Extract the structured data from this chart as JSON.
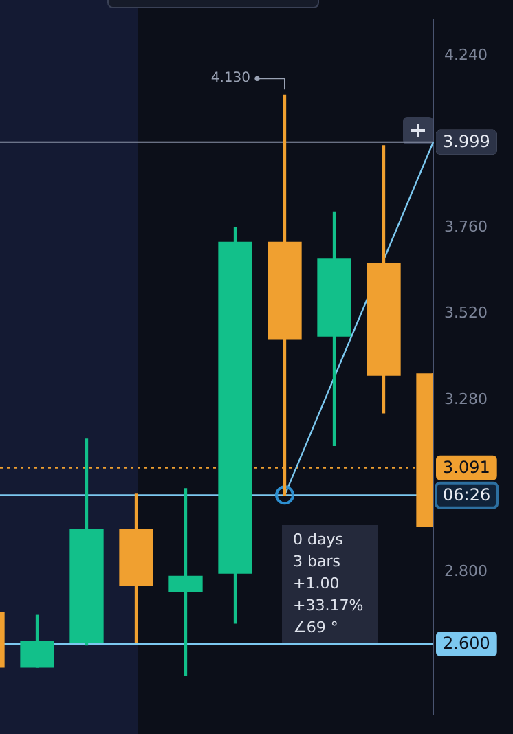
{
  "chart_data": {
    "type": "candlestick",
    "categories": [
      null,
      null,
      null,
      null,
      null,
      null,
      null,
      null,
      null,
      null
    ],
    "ohlc": [
      [
        2.687,
        2.687,
        2.535,
        2.535
      ],
      [
        2.535,
        2.68,
        2.535,
        2.607
      ],
      [
        2.604,
        3.171,
        2.597,
        2.92
      ],
      [
        2.92,
        3.018,
        2.604,
        2.764
      ],
      [
        2.746,
        3.033,
        2.513,
        2.789
      ],
      [
        2.797,
        3.76,
        2.658,
        3.72
      ],
      [
        3.72,
        4.13,
        3.015,
        3.451
      ],
      [
        3.458,
        3.804,
        3.153,
        3.673
      ],
      [
        3.662,
        3.989,
        3.244,
        3.349
      ],
      [
        3.353,
        3.353,
        2.927,
        2.927
      ]
    ],
    "colors": [
      "#f0a030",
      "#12c08a",
      "#12c08a",
      "#f0a030",
      "#12c08a",
      "#12c08a",
      "#f0a030",
      "#12c08a",
      "#f0a030",
      "#f0a030"
    ],
    "series": [
      {
        "type": "line",
        "color": "#7cc8f0",
        "values": [
          null,
          null,
          null,
          null,
          null,
          null,
          3.015,
          null,
          null,
          3.999
        ]
      }
    ],
    "ylim": [
      2.405,
      4.339
    ],
    "yticks": [
      {
        "value": 4.24,
        "label": "4.240"
      },
      {
        "value": 3.76,
        "label": "3.760"
      },
      {
        "value": 3.52,
        "label": "3.520"
      },
      {
        "value": 3.28,
        "label": "3.280"
      },
      {
        "value": 2.8,
        "label": "2.800"
      }
    ],
    "ref_lines": [
      {
        "axis": "y",
        "value": 3.999,
        "label": "3.999",
        "color": "#8a93a8"
      },
      {
        "axis": "y",
        "value": 3.091,
        "label": "3.091",
        "color": "#f0a030",
        "line_style": "dotted"
      },
      {
        "axis": "y",
        "value": 3.015,
        "label": null,
        "color": "#7cc8f0"
      },
      {
        "axis": "y",
        "value": 2.6,
        "label": "2.600",
        "color": "#7cc8f0"
      }
    ],
    "annotations": [
      "0 days",
      "3 bars",
      "+1.00",
      "+33.17%",
      "∠69 °",
      "4.130",
      "06:26"
    ],
    "grid": false,
    "legend": false,
    "marker": "circle"
  }
}
